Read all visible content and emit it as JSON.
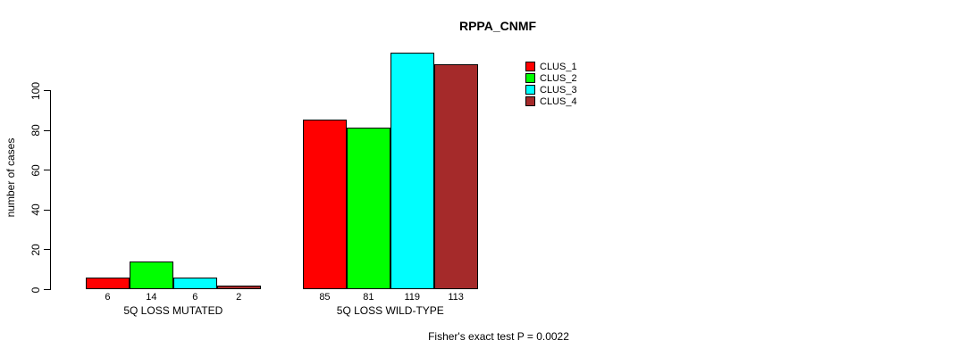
{
  "chart_data": {
    "type": "bar",
    "title": "RPPA_CNMF",
    "ylabel": "number of cases",
    "xlabel": "",
    "categories": [
      "5Q LOSS MUTATED",
      "5Q LOSS WILD-TYPE"
    ],
    "series": [
      {
        "name": "CLUS_1",
        "color": "#FF0000",
        "values": [
          6,
          85
        ]
      },
      {
        "name": "CLUS_2",
        "color": "#00FF00",
        "values": [
          14,
          81
        ]
      },
      {
        "name": "CLUS_3",
        "color": "#00FFFF",
        "values": [
          6,
          119
        ]
      },
      {
        "name": "CLUS_4",
        "color": "#A52A2A",
        "values": [
          2,
          113
        ]
      }
    ],
    "yticks": [
      0,
      20,
      40,
      60,
      80,
      100
    ],
    "ylim": [
      0,
      125
    ],
    "grid": false,
    "bar_value_labels": true,
    "legend_position": "top-right-inside",
    "footnote": "Fisher's exact test P = 0.0022"
  }
}
